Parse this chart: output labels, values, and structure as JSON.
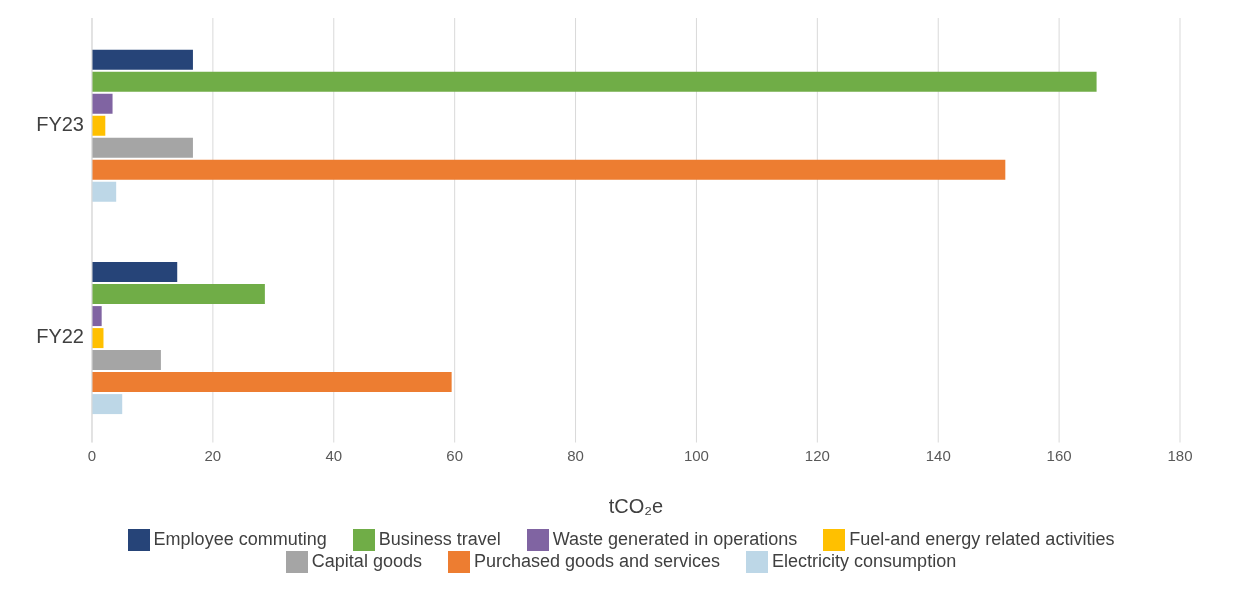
{
  "chart_data": {
    "type": "bar",
    "orientation": "horizontal",
    "categories": [
      "FY23",
      "FY22"
    ],
    "xlabel": "tCO₂e",
    "xlim": [
      0,
      180
    ],
    "xticks": [
      0,
      20,
      40,
      60,
      80,
      100,
      120,
      140,
      160,
      180
    ],
    "grid": "x",
    "legend": "bottom",
    "series": [
      {
        "name": "Employee commuting",
        "color": "#264478",
        "values": [
          16.7,
          14.1
        ]
      },
      {
        "name": "Business travel",
        "color": "#70ad47",
        "values": [
          166.2,
          28.6
        ]
      },
      {
        "name": "Waste generated in operations",
        "color": "#8064a2",
        "values": [
          3.4,
          1.6
        ]
      },
      {
        "name": "Fuel-and energy related activities",
        "color": "#ffc000",
        "values": [
          2.2,
          1.9
        ]
      },
      {
        "name": "Capital goods",
        "color": "#a5a5a5",
        "values": [
          16.7,
          11.4
        ]
      },
      {
        "name": "Purchased goods and services",
        "color": "#ed7d31",
        "values": [
          151.1,
          59.5
        ]
      },
      {
        "name": "Electricity consumption",
        "color": "#bdd7e7",
        "values": [
          4.0,
          5.0
        ]
      }
    ]
  }
}
